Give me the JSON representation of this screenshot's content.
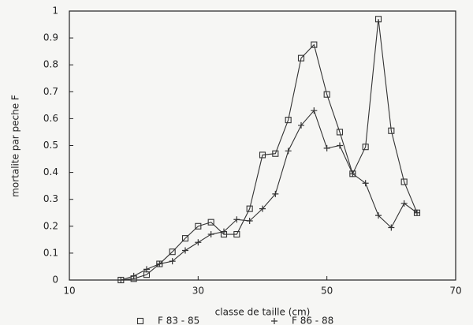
{
  "chart_data": {
    "type": "line",
    "y_label": "mortalite par peche F",
    "x_label": "classe de taille (cm)",
    "x": [
      18,
      20,
      22,
      24,
      26,
      28,
      30,
      32,
      34,
      36,
      38,
      40,
      42,
      44,
      46,
      48,
      50,
      52,
      54,
      56,
      58,
      60,
      62,
      64
    ],
    "series": [
      {
        "name": "F 83 - 85",
        "color": "#333333",
        "marker": "square",
        "values": [
          0,
          0.005,
          0.02,
          0.06,
          0.105,
          0.155,
          0.2,
          0.215,
          0.17,
          0.17,
          0.265,
          0.465,
          0.47,
          0.595,
          0.825,
          0.875,
          0.69,
          0.55,
          0.395,
          0.495,
          0.97,
          0.555,
          0.365,
          0.25
        ]
      },
      {
        "name": "F 86 - 88",
        "color": "#333333",
        "marker": "plus",
        "values": [
          0,
          0.015,
          0.04,
          0.06,
          0.07,
          0.11,
          0.14,
          0.17,
          0.18,
          0.225,
          0.22,
          0.265,
          0.32,
          0.48,
          0.575,
          0.63,
          0.49,
          0.5,
          0.395,
          0.36,
          0.24,
          0.195,
          0.285,
          0.25
        ]
      }
    ],
    "xlim": [
      10,
      70
    ],
    "xticks": [
      10,
      30,
      50,
      70
    ],
    "ylim": [
      0,
      1
    ],
    "yticks": [
      0,
      0.1,
      0.2,
      0.3,
      0.4,
      0.5,
      0.6,
      0.7,
      0.8,
      0.9,
      1
    ],
    "grid": false
  }
}
